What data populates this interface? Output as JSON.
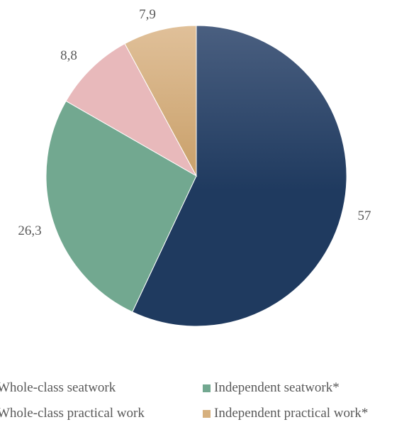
{
  "chart_data": {
    "type": "pie",
    "slices": [
      {
        "name": "Whole-class seatwork",
        "value": 57,
        "label": "57",
        "color": "#1f3a5f",
        "color_light": "#4a5f80"
      },
      {
        "name": "Independent seatwork*",
        "value": 26.3,
        "label": "26,3",
        "color": "#72a890"
      },
      {
        "name": "Whole-class practical work",
        "value": 8.8,
        "label": "8,8",
        "color": "#e8b9bb"
      },
      {
        "name": "Independent practical work*",
        "value": 7.9,
        "label": "7,9",
        "color": "#dcb783",
        "color_dark": "#c9a06a"
      }
    ],
    "start_angle_deg": 0,
    "direction": "clockwise",
    "legend_position": "bottom"
  }
}
